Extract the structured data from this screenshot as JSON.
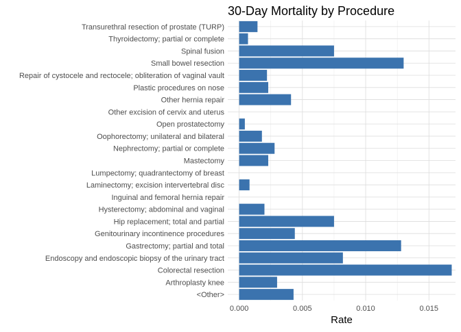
{
  "chart_data": {
    "type": "bar",
    "orientation": "horizontal",
    "title": "30-Day Mortality by Procedure",
    "xlabel": "Rate",
    "ylabel": "",
    "xlim": [
      -0.0009,
      0.0171
    ],
    "x_ticks": [
      0.0,
      0.005,
      0.01,
      0.015
    ],
    "x_tick_labels": [
      "0.000",
      "0.005",
      "0.010",
      "0.015"
    ],
    "grid": true,
    "legend": "none",
    "bar_color": "#3B73AE",
    "categories": [
      "Transurethral resection of prostate (TURP)",
      "Thyroidectomy; partial or complete",
      "Spinal fusion",
      "Small bowel resection",
      "Repair of cystocele and rectocele; obliteration of vaginal vault",
      "Plastic procedures on nose",
      "Other hernia repair",
      "Other excision of cervix and uterus",
      "Open prostatectomy",
      "Oophorectomy; unilateral and bilateral",
      "Nephrectomy; partial or complete",
      "Mastectomy",
      "Lumpectomy; quadrantectomy of breast",
      "Laminectomy; excision intervertebral disc",
      "Inguinal and femoral hernia repair",
      "Hysterectomy; abdominal and vaginal",
      "Hip replacement; total and partial",
      "Genitourinary incontinence procedures",
      "Gastrectomy; partial and total",
      "Endoscopy and endoscopic biopsy of the urinary tract",
      "Colorectal resection",
      "Arthroplasty knee",
      "<Other>"
    ],
    "values": [
      0.00145,
      0.0007,
      0.0075,
      0.013,
      0.0022,
      0.0023,
      0.0041,
      0.0,
      0.00045,
      0.0018,
      0.0028,
      0.0023,
      0.0,
      0.00082,
      0.0,
      0.002,
      0.0075,
      0.0044,
      0.0128,
      0.0082,
      0.0168,
      0.003,
      0.0043
    ]
  }
}
